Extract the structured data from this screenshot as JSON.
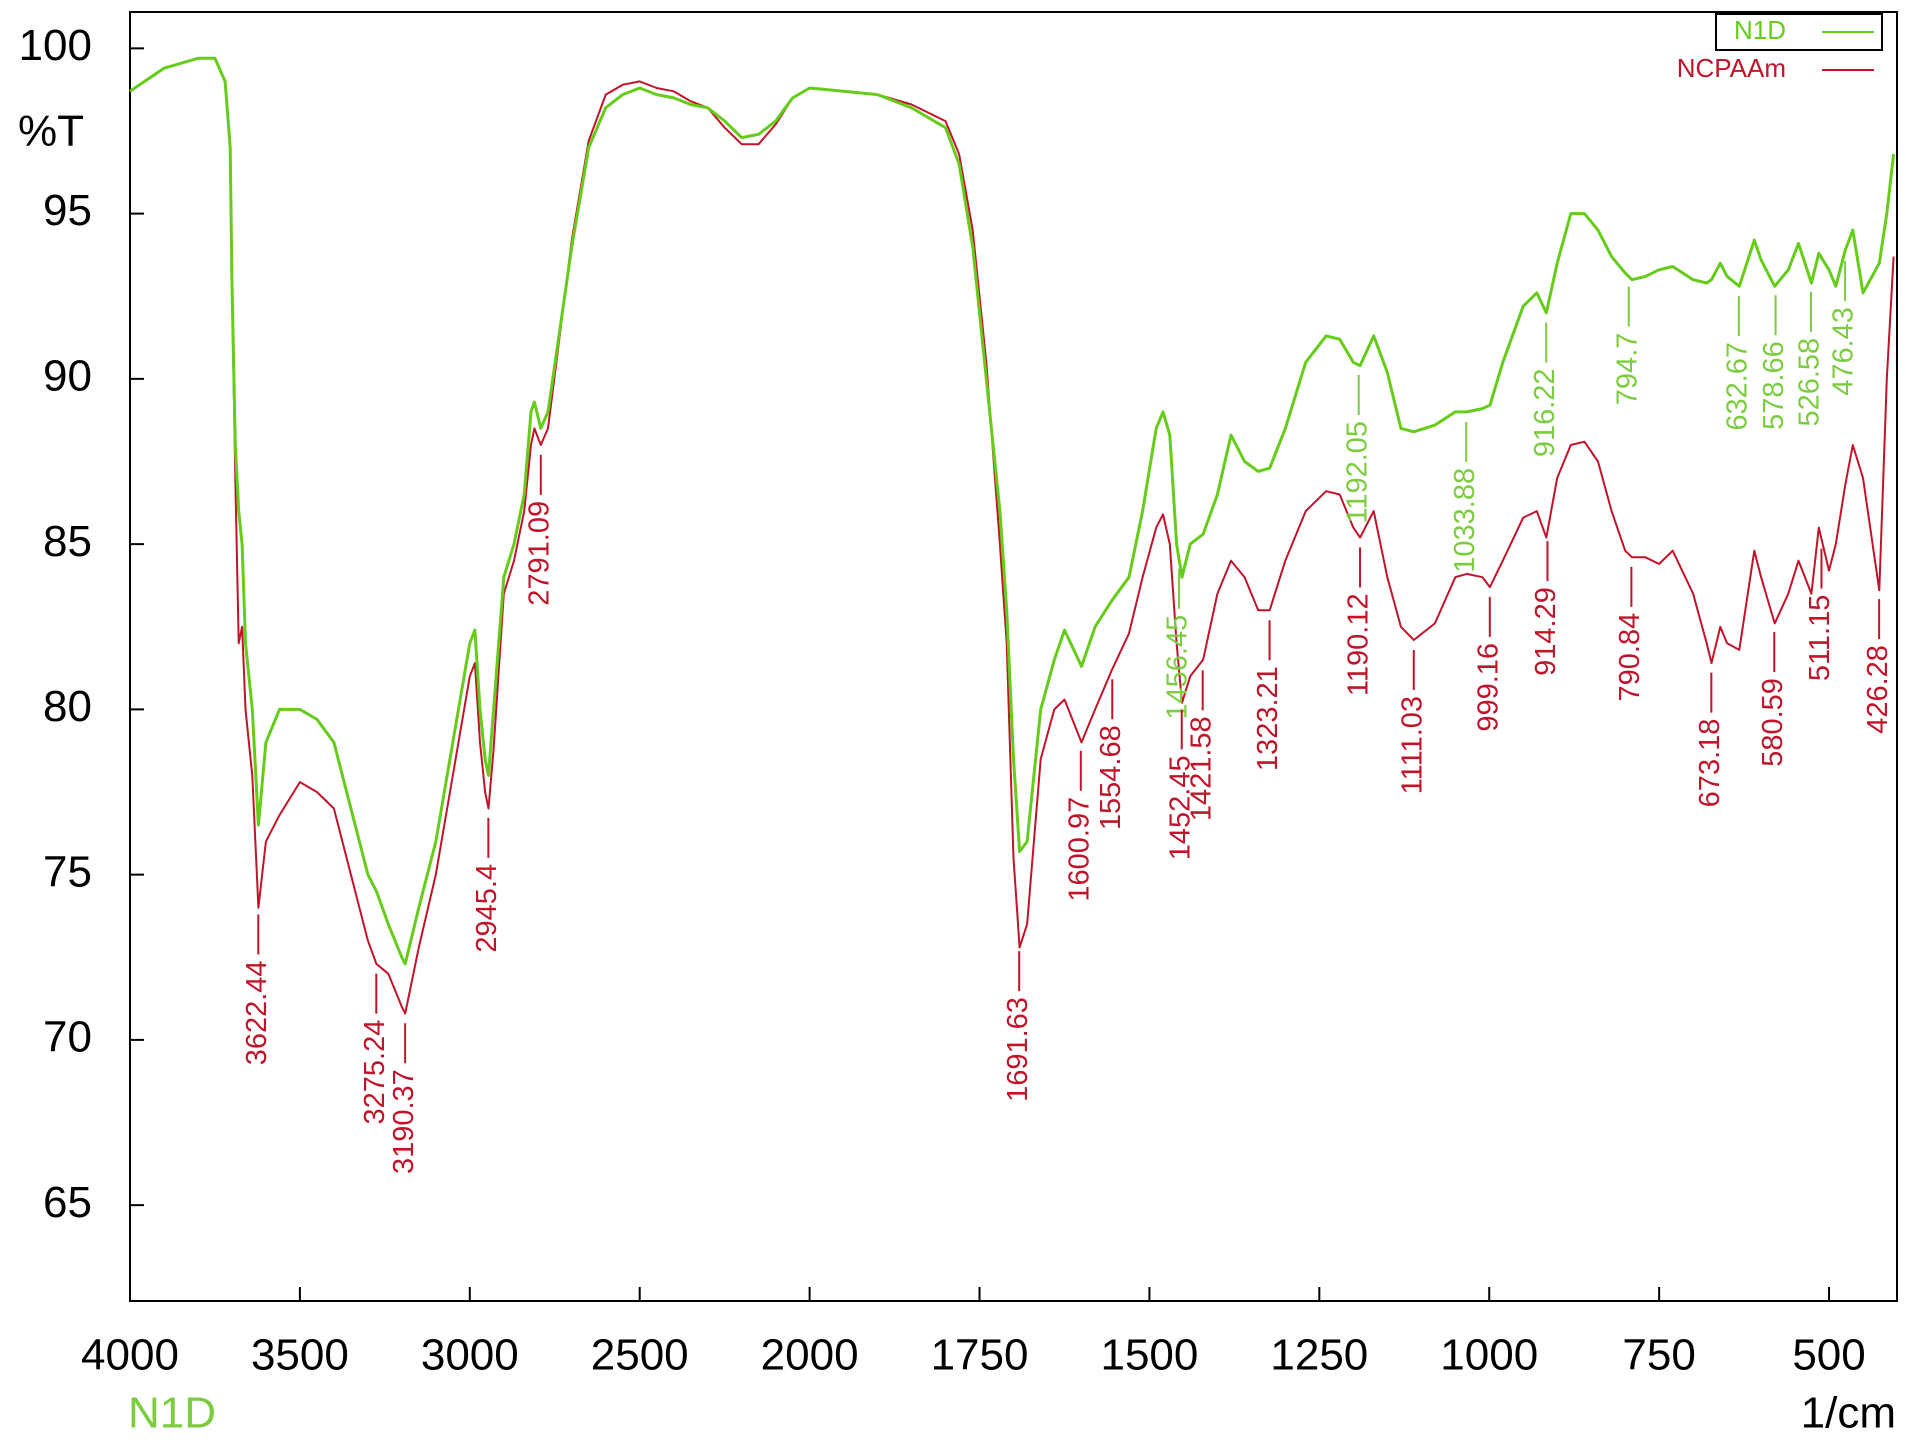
{
  "chart_data": {
    "type": "line",
    "y_axis_label": "%T",
    "x_axis_label": "1/cm",
    "xlim": [
      4000,
      400
    ],
    "x_scale_change": {
      "at": 2000,
      "factor": 2
    },
    "ylim": [
      62.1,
      101.1
    ],
    "xticks": [
      4000,
      3500,
      3000,
      2500,
      2000,
      1750,
      1500,
      1250,
      1000,
      750,
      500
    ],
    "yticks": [
      65,
      70,
      75,
      80,
      85,
      90,
      95,
      100
    ],
    "legend": "top-right",
    "x": [
      4000,
      3900,
      3800,
      3750,
      3720,
      3705,
      3700,
      3690,
      3680,
      3670,
      3660,
      3640,
      3622,
      3600,
      3560,
      3500,
      3450,
      3400,
      3350,
      3300,
      3275,
      3240,
      3200,
      3190,
      3150,
      3100,
      3050,
      3000,
      2985,
      2970,
      2955,
      2945,
      2930,
      2900,
      2870,
      2840,
      2820,
      2810,
      2791,
      2770,
      2700,
      2650,
      2600,
      2550,
      2500,
      2450,
      2400,
      2350,
      2300,
      2250,
      2200,
      2150,
      2100,
      2050,
      2000,
      1950,
      1900,
      1850,
      1800,
      1780,
      1760,
      1740,
      1720,
      1710,
      1700,
      1691,
      1680,
      1670,
      1660,
      1640,
      1625,
      1600,
      1580,
      1555,
      1530,
      1510,
      1490,
      1480,
      1470,
      1460,
      1452,
      1440,
      1421,
      1400,
      1380,
      1360,
      1340,
      1323,
      1300,
      1270,
      1240,
      1220,
      1200,
      1190,
      1170,
      1150,
      1130,
      1111,
      1080,
      1050,
      1033,
      1010,
      999,
      980,
      950,
      930,
      916,
      900,
      880,
      860,
      840,
      820,
      800,
      790,
      770,
      750,
      730,
      700,
      680,
      673,
      660,
      650,
      632,
      610,
      600,
      580,
      560,
      545,
      526,
      515,
      500,
      490,
      476,
      465,
      450,
      426,
      415,
      405
    ],
    "series": [
      {
        "name": "N1D",
        "color": "#66cc1a",
        "label_color": "#7ccc40",
        "values": [
          98.7,
          99.4,
          99.7,
          99.7,
          99.0,
          97.0,
          93.0,
          88.0,
          86.0,
          85.0,
          82.0,
          80.0,
          76.5,
          79.0,
          80.0,
          80.0,
          79.7,
          79.0,
          77.0,
          75.0,
          74.5,
          73.5,
          72.5,
          72.3,
          74.0,
          76.0,
          79.0,
          82.0,
          82.4,
          80.0,
          78.5,
          78.0,
          80.0,
          84.0,
          85.0,
          86.5,
          89.0,
          89.3,
          88.5,
          89.0,
          94.0,
          97.0,
          98.2,
          98.6,
          98.8,
          98.6,
          98.5,
          98.3,
          98.2,
          97.8,
          97.3,
          97.4,
          97.8,
          98.5,
          98.8,
          98.7,
          98.6,
          98.2,
          97.6,
          96.5,
          94.0,
          90.0,
          86.0,
          83.0,
          78.5,
          75.7,
          76.0,
          78.0,
          80.0,
          81.5,
          82.4,
          81.3,
          82.5,
          83.3,
          84.0,
          86.0,
          88.5,
          89.0,
          88.3,
          85.0,
          84.0,
          85.0,
          85.3,
          86.5,
          88.3,
          87.5,
          87.2,
          87.3,
          88.5,
          90.5,
          91.3,
          91.2,
          90.5,
          90.4,
          91.3,
          90.2,
          88.5,
          88.4,
          88.6,
          89.0,
          89.0,
          89.1,
          89.2,
          90.5,
          92.2,
          92.6,
          92.0,
          93.5,
          95.0,
          95.0,
          94.5,
          93.7,
          93.2,
          93.0,
          93.1,
          93.3,
          93.4,
          93.0,
          92.9,
          93.0,
          93.5,
          93.1,
          92.8,
          94.2,
          93.6,
          92.8,
          93.3,
          94.1,
          92.9,
          93.8,
          93.3,
          92.8,
          93.9,
          94.5,
          92.6,
          93.5,
          95.0,
          96.8
        ],
        "peaks": [
          1456.45,
          1192.05,
          1033.88,
          916.22,
          794.7,
          632.67,
          578.66,
          526.58,
          476.43
        ]
      },
      {
        "name": "NCPAAm",
        "color": "#c0142a",
        "label_color": "#c0142a",
        "values": [
          98.7,
          99.4,
          99.7,
          99.7,
          99.0,
          97.0,
          93.0,
          87.0,
          82.0,
          82.5,
          80.0,
          78.0,
          74.0,
          76.0,
          76.8,
          77.8,
          77.5,
          77.0,
          75.0,
          73.0,
          72.3,
          72.0,
          71.0,
          70.8,
          72.8,
          75.0,
          78.0,
          81.0,
          81.4,
          79.0,
          77.5,
          77.0,
          78.8,
          83.5,
          84.5,
          86.0,
          88.0,
          88.5,
          88.0,
          88.5,
          94.2,
          97.2,
          98.6,
          98.9,
          99.0,
          98.8,
          98.7,
          98.4,
          98.2,
          97.6,
          97.1,
          97.1,
          97.7,
          98.5,
          98.8,
          98.7,
          98.6,
          98.3,
          97.8,
          96.8,
          94.5,
          90.5,
          85.0,
          82.0,
          75.5,
          72.8,
          73.5,
          76.0,
          78.5,
          80.0,
          80.3,
          79.0,
          80.0,
          81.2,
          82.3,
          84.0,
          85.5,
          85.9,
          85.0,
          82.0,
          80.2,
          81.0,
          81.5,
          83.5,
          84.5,
          84.0,
          83.0,
          83.0,
          84.5,
          86.0,
          86.6,
          86.5,
          85.5,
          85.2,
          86.0,
          84.0,
          82.5,
          82.1,
          82.6,
          84.0,
          84.1,
          84.0,
          83.7,
          84.5,
          85.8,
          86.0,
          85.2,
          87.0,
          88.0,
          88.1,
          87.5,
          86.0,
          84.8,
          84.6,
          84.6,
          84.4,
          84.8,
          83.5,
          82.0,
          81.4,
          82.5,
          82.0,
          81.8,
          84.8,
          84.0,
          82.6,
          83.5,
          84.5,
          83.5,
          85.5,
          84.2,
          85.0,
          86.8,
          88.0,
          87.0,
          83.6,
          90.0,
          93.7
        ],
        "peaks": [
          3622.44,
          3275.24,
          3190.37,
          2945.4,
          2791.09,
          1691.63,
          1600.97,
          1554.68,
          1452.45,
          1421.58,
          1323.21,
          1190.12,
          1111.03,
          999.16,
          914.29,
          790.84,
          673.18,
          580.59,
          511.15,
          426.28
        ]
      }
    ]
  }
}
